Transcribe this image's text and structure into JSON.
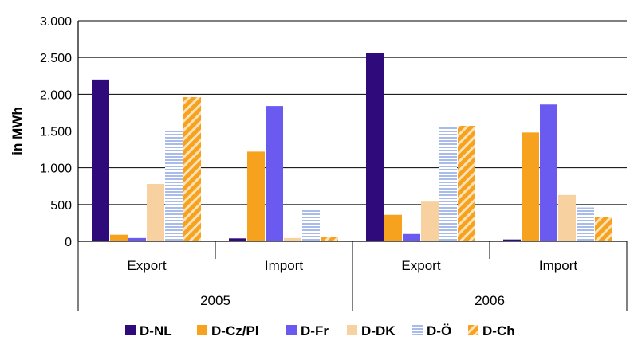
{
  "chart_data": {
    "type": "bar",
    "title": "",
    "xlabel": "",
    "ylabel": "in MWh",
    "ylim": [
      0,
      3000
    ],
    "yticks": [
      0,
      500,
      1000,
      1500,
      2000,
      2500,
      3000
    ],
    "ytick_labels": [
      "0",
      "500",
      "1.000",
      "1.500",
      "2.000",
      "2.500",
      "3.000"
    ],
    "grid": true,
    "legend_position": "bottom",
    "categories": [
      "Export",
      "Import",
      "Export",
      "Import"
    ],
    "groups": [
      {
        "label": "2005",
        "categories": [
          "Export",
          "Import"
        ]
      },
      {
        "label": "2006",
        "categories": [
          "Export",
          "Import"
        ]
      }
    ],
    "series": [
      {
        "name": "D-NL",
        "color": "#2e0a7a",
        "pattern": "solid",
        "values": [
          2200,
          40,
          2560,
          25
        ]
      },
      {
        "name": "D-Cz/Pl",
        "color": "#f6a21e",
        "pattern": "solid",
        "values": [
          90,
          1220,
          360,
          1480
        ]
      },
      {
        "name": "D-Fr",
        "color": "#6a5af0",
        "pattern": "solid",
        "values": [
          45,
          1840,
          100,
          1860
        ]
      },
      {
        "name": "D-DK",
        "color": "#f8d1a0",
        "pattern": "solid",
        "values": [
          780,
          45,
          540,
          630
        ]
      },
      {
        "name": "D-Ö",
        "color": "#b8c8f0",
        "pattern": "horizontal-lines",
        "values": [
          1500,
          430,
          1560,
          460
        ]
      },
      {
        "name": "D-Ch",
        "color": "#f6a21e",
        "pattern": "diagonal-stripes",
        "values": [
          1960,
          60,
          1570,
          330
        ]
      }
    ]
  }
}
